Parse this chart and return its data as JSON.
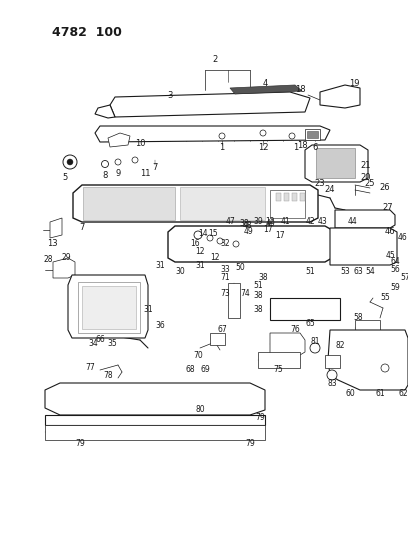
{
  "bg_color": "#ffffff",
  "line_color": "#1a1a1a",
  "diagram_label": "4782  100",
  "fig_width": 4.08,
  "fig_height": 5.33,
  "dpi": 100
}
